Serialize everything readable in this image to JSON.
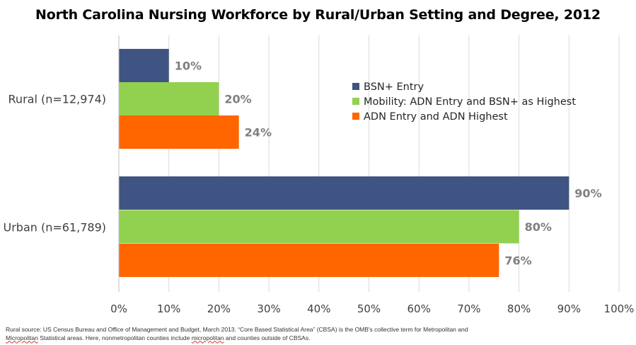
{
  "title": "North Carolina Nursing Workforce by Rural/Urban Setting and Degree, 2012",
  "footnote": {
    "line1": "Rural source: US Census Bureau and Office of Management and Budget, March 2013. “Core Based Statistical Area” (CBSA) is the OMB's collective term for Metropolitan and",
    "line2_word1": "Micropolitan",
    "line2_mid": " Statistical areas. Here, nonmetropolitan counties include ",
    "line2_word2": "micropolitan",
    "line2_end": " and counties outside of CBSAs."
  },
  "chart_data": {
    "type": "bar",
    "orientation": "horizontal",
    "title": "North Carolina Nursing Workforce by Rural/Urban Setting and Degree, 2012",
    "categories": [
      "Rural (n=12,974)",
      "Urban (n=61,789)"
    ],
    "series": [
      {
        "name": "BSN+ Entry",
        "color": "#3f5482",
        "values": [
          10,
          90
        ]
      },
      {
        "name": "Mobility: ADN Entry and BSN+ as Highest",
        "color": "#92d050",
        "values": [
          20,
          80
        ]
      },
      {
        "name": "ADN Entry and ADN Highest",
        "color": "#ff6600",
        "values": [
          24,
          76
        ]
      }
    ],
    "data_labels": [
      [
        "10%",
        "90%"
      ],
      [
        "20%",
        "80%"
      ],
      [
        "24%",
        "76%"
      ]
    ],
    "xlim": [
      0,
      100
    ],
    "xticks": [
      "0%",
      "10%",
      "20%",
      "30%",
      "40%",
      "50%",
      "60%",
      "70%",
      "80%",
      "90%",
      "100%"
    ],
    "grid": true,
    "legend_position": "top-right"
  }
}
